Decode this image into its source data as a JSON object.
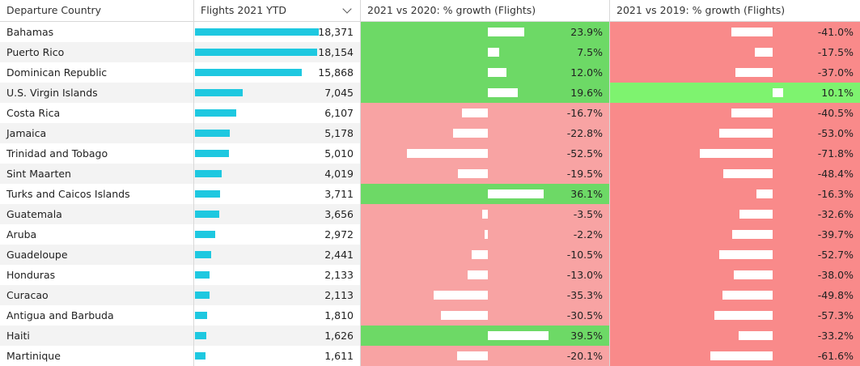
{
  "headers": {
    "country": "Departure Country",
    "flights": "Flights 2021 YTD",
    "g20": "2021 vs 2020: % growth (Flights)",
    "g19": "2021 vs 2019: % growth (Flights)"
  },
  "colors": {
    "flight_bar": "#1ec8e0",
    "positive_2020": "#6dd966",
    "negative_2020": "#f8a3a3",
    "positive_2019": "#7ef36f",
    "negative_2019": "#f98a8a"
  },
  "rows": [
    {
      "country": "Bahamas",
      "flights": "18,371",
      "flights_value": 18371,
      "g20": "23.9%",
      "g20_value": 23.9,
      "g19": "-41.0%",
      "g19_value": -41.0
    },
    {
      "country": "Puerto Rico",
      "flights": "18,154",
      "flights_value": 18154,
      "g20": "7.5%",
      "g20_value": 7.5,
      "g19": "-17.5%",
      "g19_value": -17.5
    },
    {
      "country": "Dominican Republic",
      "flights": "15,868",
      "flights_value": 15868,
      "g20": "12.0%",
      "g20_value": 12.0,
      "g19": "-37.0%",
      "g19_value": -37.0
    },
    {
      "country": "U.S. Virgin Islands",
      "flights": "7,045",
      "flights_value": 7045,
      "g20": "19.6%",
      "g20_value": 19.6,
      "g19": "10.1%",
      "g19_value": 10.1
    },
    {
      "country": "Costa Rica",
      "flights": "6,107",
      "flights_value": 6107,
      "g20": "-16.7%",
      "g20_value": -16.7,
      "g19": "-40.5%",
      "g19_value": -40.5
    },
    {
      "country": "Jamaica",
      "flights": "5,178",
      "flights_value": 5178,
      "g20": "-22.8%",
      "g20_value": -22.8,
      "g19": "-53.0%",
      "g19_value": -53.0
    },
    {
      "country": "Trinidad and Tobago",
      "flights": "5,010",
      "flights_value": 5010,
      "g20": "-52.5%",
      "g20_value": -52.5,
      "g19": "-71.8%",
      "g19_value": -71.8
    },
    {
      "country": "Sint Maarten",
      "flights": "4,019",
      "flights_value": 4019,
      "g20": "-19.5%",
      "g20_value": -19.5,
      "g19": "-48.4%",
      "g19_value": -48.4
    },
    {
      "country": "Turks and Caicos Islands",
      "flights": "3,711",
      "flights_value": 3711,
      "g20": "36.1%",
      "g20_value": 36.1,
      "g19": "-16.3%",
      "g19_value": -16.3
    },
    {
      "country": "Guatemala",
      "flights": "3,656",
      "flights_value": 3656,
      "g20": "-3.5%",
      "g20_value": -3.5,
      "g19": "-32.6%",
      "g19_value": -32.6
    },
    {
      "country": "Aruba",
      "flights": "2,972",
      "flights_value": 2972,
      "g20": "-2.2%",
      "g20_value": -2.2,
      "g19": "-39.7%",
      "g19_value": -39.7
    },
    {
      "country": "Guadeloupe",
      "flights": "2,441",
      "flights_value": 2441,
      "g20": "-10.5%",
      "g20_value": -10.5,
      "g19": "-52.7%",
      "g19_value": -52.7
    },
    {
      "country": "Honduras",
      "flights": "2,133",
      "flights_value": 2133,
      "g20": "-13.0%",
      "g20_value": -13.0,
      "g19": "-38.0%",
      "g19_value": -38.0
    },
    {
      "country": "Curacao",
      "flights": "2,113",
      "flights_value": 2113,
      "g20": "-35.3%",
      "g20_value": -35.3,
      "g19": "-49.8%",
      "g19_value": -49.8
    },
    {
      "country": "Antigua and Barbuda",
      "flights": "1,810",
      "flights_value": 1810,
      "g20": "-30.5%",
      "g20_value": -30.5,
      "g19": "-57.3%",
      "g19_value": -57.3
    },
    {
      "country": "Haiti",
      "flights": "1,626",
      "flights_value": 1626,
      "g20": "39.5%",
      "g20_value": 39.5,
      "g19": "-33.2%",
      "g19_value": -33.2
    },
    {
      "country": "Martinique",
      "flights": "1,611",
      "flights_value": 1611,
      "g20": "-20.1%",
      "g20_value": -20.1,
      "g19": "-61.6%",
      "g19_value": -61.6
    }
  ]
}
